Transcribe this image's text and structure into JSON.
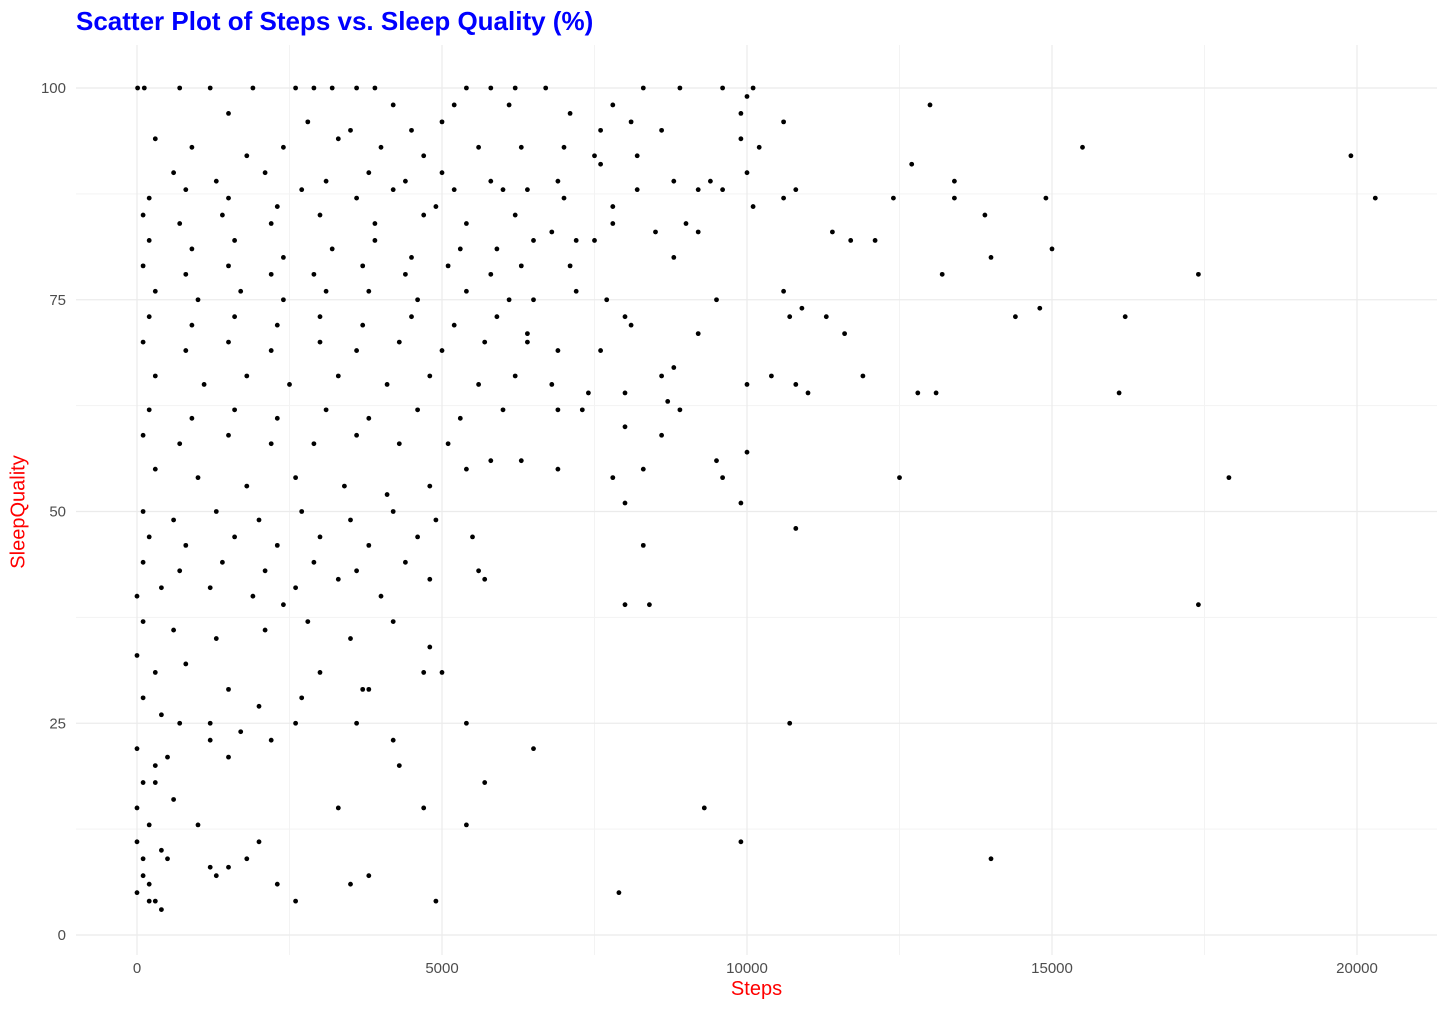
{
  "chart_data": {
    "type": "scatter",
    "title": "Scatter Plot of Steps vs. Sleep Quality (%)",
    "xlabel": "Steps",
    "ylabel": "SleepQuality",
    "xlim": [
      -1000,
      21300
    ],
    "ylim": [
      0,
      100
    ],
    "xticks": [
      "0",
      "5000",
      "10000",
      "15000",
      "20000"
    ],
    "yticks": [
      "0",
      "25",
      "50",
      "75",
      "100"
    ],
    "grid": true,
    "colors": {
      "title": "#0000ff",
      "axis_labels": "#ff0000",
      "points": "#000000",
      "grid": "#ebebeb"
    },
    "points": [
      [
        10,
        100
      ],
      [
        120,
        100
      ],
      [
        700,
        100
      ],
      [
        1200,
        100
      ],
      [
        1900,
        100
      ],
      [
        2600,
        100
      ],
      [
        2900,
        100
      ],
      [
        3200,
        100
      ],
      [
        3600,
        100
      ],
      [
        3900,
        100
      ],
      [
        5400,
        100
      ],
      [
        5800,
        100
      ],
      [
        6200,
        100
      ],
      [
        6700,
        100
      ],
      [
        8300,
        100
      ],
      [
        8900,
        100
      ],
      [
        9600,
        100
      ],
      [
        10100,
        100
      ],
      [
        4200,
        98
      ],
      [
        5200,
        98
      ],
      [
        6100,
        98
      ],
      [
        7800,
        98
      ],
      [
        10000,
        99
      ],
      [
        13000,
        98
      ],
      [
        7100,
        97
      ],
      [
        9900,
        97
      ],
      [
        1500,
        97
      ],
      [
        2800,
        96
      ],
      [
        3500,
        95
      ],
      [
        8100,
        96
      ],
      [
        10600,
        96
      ],
      [
        7600,
        95
      ],
      [
        8600,
        95
      ],
      [
        5000,
        96
      ],
      [
        4500,
        95
      ],
      [
        300,
        94
      ],
      [
        900,
        93
      ],
      [
        1800,
        92
      ],
      [
        2400,
        93
      ],
      [
        3300,
        94
      ],
      [
        4000,
        93
      ],
      [
        4700,
        92
      ],
      [
        5600,
        93
      ],
      [
        6300,
        93
      ],
      [
        7000,
        93
      ],
      [
        7500,
        92
      ],
      [
        8200,
        92
      ],
      [
        9900,
        94
      ],
      [
        10200,
        93
      ],
      [
        15500,
        93
      ],
      [
        19900,
        92
      ],
      [
        12700,
        91
      ],
      [
        600,
        90
      ],
      [
        1300,
        89
      ],
      [
        2100,
        90
      ],
      [
        3100,
        89
      ],
      [
        3800,
        90
      ],
      [
        4400,
        89
      ],
      [
        5000,
        90
      ],
      [
        5800,
        89
      ],
      [
        6900,
        89
      ],
      [
        7600,
        91
      ],
      [
        8800,
        89
      ],
      [
        9400,
        89
      ],
      [
        10000,
        90
      ],
      [
        200,
        87
      ],
      [
        800,
        88
      ],
      [
        1500,
        87
      ],
      [
        2300,
        86
      ],
      [
        2700,
        88
      ],
      [
        3600,
        87
      ],
      [
        4200,
        88
      ],
      [
        4900,
        86
      ],
      [
        5200,
        88
      ],
      [
        6000,
        88
      ],
      [
        6400,
        88
      ],
      [
        7000,
        87
      ],
      [
        7800,
        86
      ],
      [
        8200,
        88
      ],
      [
        9200,
        88
      ],
      [
        9600,
        88
      ],
      [
        10800,
        88
      ],
      [
        10100,
        86
      ],
      [
        10600,
        87
      ],
      [
        12400,
        87
      ],
      [
        13400,
        89
      ],
      [
        14900,
        87
      ],
      [
        20300,
        87
      ],
      [
        13400,
        87
      ],
      [
        100,
        85
      ],
      [
        700,
        84
      ],
      [
        1400,
        85
      ],
      [
        2200,
        84
      ],
      [
        3000,
        85
      ],
      [
        3900,
        84
      ],
      [
        4700,
        85
      ],
      [
        5400,
        84
      ],
      [
        6200,
        85
      ],
      [
        6800,
        83
      ],
      [
        8500,
        83
      ],
      [
        9000,
        84
      ],
      [
        9200,
        83
      ],
      [
        11400,
        83
      ],
      [
        13900,
        85
      ],
      [
        7800,
        84
      ],
      [
        200,
        82
      ],
      [
        900,
        81
      ],
      [
        1600,
        82
      ],
      [
        2400,
        80
      ],
      [
        3200,
        81
      ],
      [
        3900,
        82
      ],
      [
        4500,
        80
      ],
      [
        5300,
        81
      ],
      [
        5900,
        81
      ],
      [
        6500,
        82
      ],
      [
        7200,
        82
      ],
      [
        7500,
        82
      ],
      [
        11700,
        82
      ],
      [
        12100,
        82
      ],
      [
        15000,
        81
      ],
      [
        100,
        79
      ],
      [
        800,
        78
      ],
      [
        1500,
        79
      ],
      [
        2200,
        78
      ],
      [
        2900,
        78
      ],
      [
        3700,
        79
      ],
      [
        4400,
        78
      ],
      [
        5100,
        79
      ],
      [
        5800,
        78
      ],
      [
        6300,
        79
      ],
      [
        7100,
        79
      ],
      [
        8800,
        80
      ],
      [
        14000,
        80
      ],
      [
        13200,
        78
      ],
      [
        17400,
        78
      ],
      [
        300,
        76
      ],
      [
        1000,
        75
      ],
      [
        1700,
        76
      ],
      [
        2400,
        75
      ],
      [
        3100,
        76
      ],
      [
        3800,
        76
      ],
      [
        4600,
        75
      ],
      [
        5400,
        76
      ],
      [
        6100,
        75
      ],
      [
        6500,
        75
      ],
      [
        7200,
        76
      ],
      [
        7700,
        75
      ],
      [
        9500,
        75
      ],
      [
        10600,
        76
      ],
      [
        200,
        73
      ],
      [
        900,
        72
      ],
      [
        1600,
        73
      ],
      [
        2300,
        72
      ],
      [
        3000,
        73
      ],
      [
        3700,
        72
      ],
      [
        4500,
        73
      ],
      [
        5200,
        72
      ],
      [
        5900,
        73
      ],
      [
        6400,
        71
      ],
      [
        8000,
        73
      ],
      [
        8100,
        72
      ],
      [
        9200,
        71
      ],
      [
        10700,
        73
      ],
      [
        10900,
        74
      ],
      [
        11300,
        73
      ],
      [
        11600,
        71
      ],
      [
        14400,
        73
      ],
      [
        14800,
        74
      ],
      [
        16200,
        73
      ],
      [
        100,
        70
      ],
      [
        800,
        69
      ],
      [
        1500,
        70
      ],
      [
        2200,
        69
      ],
      [
        3000,
        70
      ],
      [
        3600,
        69
      ],
      [
        4300,
        70
      ],
      [
        5000,
        69
      ],
      [
        5700,
        70
      ],
      [
        6400,
        70
      ],
      [
        6900,
        69
      ],
      [
        7600,
        69
      ],
      [
        8800,
        67
      ],
      [
        8600,
        66
      ],
      [
        10400,
        66
      ],
      [
        11900,
        66
      ],
      [
        10000,
        65
      ],
      [
        10800,
        65
      ],
      [
        11000,
        64
      ],
      [
        12800,
        64
      ],
      [
        13100,
        64
      ],
      [
        16100,
        64
      ],
      [
        300,
        66
      ],
      [
        1100,
        65
      ],
      [
        1800,
        66
      ],
      [
        2500,
        65
      ],
      [
        3300,
        66
      ],
      [
        4100,
        65
      ],
      [
        4800,
        66
      ],
      [
        5600,
        65
      ],
      [
        6200,
        66
      ],
      [
        6800,
        65
      ],
      [
        7400,
        64
      ],
      [
        8000,
        64
      ],
      [
        8700,
        63
      ],
      [
        8900,
        62
      ],
      [
        200,
        62
      ],
      [
        900,
        61
      ],
      [
        1600,
        62
      ],
      [
        2300,
        61
      ],
      [
        3100,
        62
      ],
      [
        3800,
        61
      ],
      [
        4600,
        62
      ],
      [
        5300,
        61
      ],
      [
        6000,
        62
      ],
      [
        6900,
        62
      ],
      [
        7300,
        62
      ],
      [
        8000,
        60
      ],
      [
        8600,
        59
      ],
      [
        100,
        59
      ],
      [
        700,
        58
      ],
      [
        1500,
        59
      ],
      [
        2200,
        58
      ],
      [
        2900,
        58
      ],
      [
        3600,
        59
      ],
      [
        4300,
        58
      ],
      [
        5100,
        58
      ],
      [
        5800,
        56
      ],
      [
        6300,
        56
      ],
      [
        6900,
        55
      ],
      [
        8300,
        55
      ],
      [
        9500,
        56
      ],
      [
        9600,
        54
      ],
      [
        10000,
        57
      ],
      [
        12500,
        54
      ],
      [
        17900,
        54
      ],
      [
        7800,
        54
      ],
      [
        300,
        55
      ],
      [
        1000,
        54
      ],
      [
        1800,
        53
      ],
      [
        2600,
        54
      ],
      [
        3400,
        53
      ],
      [
        4100,
        52
      ],
      [
        4800,
        53
      ],
      [
        5400,
        55
      ],
      [
        100,
        50
      ],
      [
        600,
        49
      ],
      [
        1300,
        50
      ],
      [
        2000,
        49
      ],
      [
        2700,
        50
      ],
      [
        3500,
        49
      ],
      [
        4200,
        50
      ],
      [
        4900,
        49
      ],
      [
        9900,
        51
      ],
      [
        8000,
        51
      ],
      [
        200,
        47
      ],
      [
        800,
        46
      ],
      [
        1600,
        47
      ],
      [
        2300,
        46
      ],
      [
        3000,
        47
      ],
      [
        3800,
        46
      ],
      [
        4600,
        47
      ],
      [
        5500,
        47
      ],
      [
        8300,
        46
      ],
      [
        10800,
        48
      ],
      [
        100,
        44
      ],
      [
        700,
        43
      ],
      [
        1400,
        44
      ],
      [
        2100,
        43
      ],
      [
        2900,
        44
      ],
      [
        3600,
        43
      ],
      [
        4400,
        44
      ],
      [
        5600,
        43
      ],
      [
        5700,
        42
      ],
      [
        0,
        40
      ],
      [
        400,
        41
      ],
      [
        1200,
        41
      ],
      [
        1900,
        40
      ],
      [
        2600,
        41
      ],
      [
        3300,
        42
      ],
      [
        4000,
        40
      ],
      [
        4800,
        42
      ],
      [
        8000,
        39
      ],
      [
        8400,
        39
      ],
      [
        17400,
        39
      ],
      [
        100,
        37
      ],
      [
        600,
        36
      ],
      [
        1300,
        35
      ],
      [
        2100,
        36
      ],
      [
        2800,
        37
      ],
      [
        3500,
        35
      ],
      [
        4200,
        37
      ],
      [
        4800,
        34
      ],
      [
        5000,
        31
      ],
      [
        4700,
        31
      ],
      [
        3000,
        31
      ],
      [
        2700,
        28
      ],
      [
        0,
        33
      ],
      [
        300,
        31
      ],
      [
        800,
        32
      ],
      [
        1500,
        29
      ],
      [
        2400,
        39
      ],
      [
        3700,
        29
      ],
      [
        3800,
        29
      ],
      [
        2000,
        27
      ],
      [
        100,
        28
      ],
      [
        400,
        26
      ],
      [
        700,
        25
      ],
      [
        1200,
        25
      ],
      [
        1700,
        24
      ],
      [
        2600,
        25
      ],
      [
        3600,
        25
      ],
      [
        5400,
        25
      ],
      [
        10700,
        25
      ],
      [
        0,
        22
      ],
      [
        300,
        20
      ],
      [
        500,
        21
      ],
      [
        1200,
        23
      ],
      [
        1500,
        21
      ],
      [
        2200,
        23
      ],
      [
        4200,
        23
      ],
      [
        4300,
        20
      ],
      [
        6500,
        22
      ],
      [
        100,
        18
      ],
      [
        300,
        18
      ],
      [
        600,
        16
      ],
      [
        1000,
        13
      ],
      [
        1800,
        9
      ],
      [
        2000,
        11
      ],
      [
        3300,
        15
      ],
      [
        4700,
        15
      ],
      [
        5700,
        18
      ],
      [
        5400,
        13
      ],
      [
        9300,
        15
      ],
      [
        9900,
        11
      ],
      [
        14000,
        9
      ],
      [
        0,
        15
      ],
      [
        200,
        13
      ],
      [
        400,
        10
      ],
      [
        1200,
        8
      ],
      [
        1300,
        7
      ],
      [
        1500,
        8
      ],
      [
        2300,
        6
      ],
      [
        2600,
        4
      ],
      [
        3500,
        6
      ],
      [
        3800,
        7
      ],
      [
        4900,
        4
      ],
      [
        7900,
        5
      ],
      [
        0,
        11
      ],
      [
        100,
        9
      ],
      [
        200,
        6
      ],
      [
        300,
        4
      ],
      [
        400,
        3
      ],
      [
        500,
        9
      ],
      [
        0,
        5
      ],
      [
        100,
        7
      ],
      [
        200,
        4
      ]
    ]
  }
}
